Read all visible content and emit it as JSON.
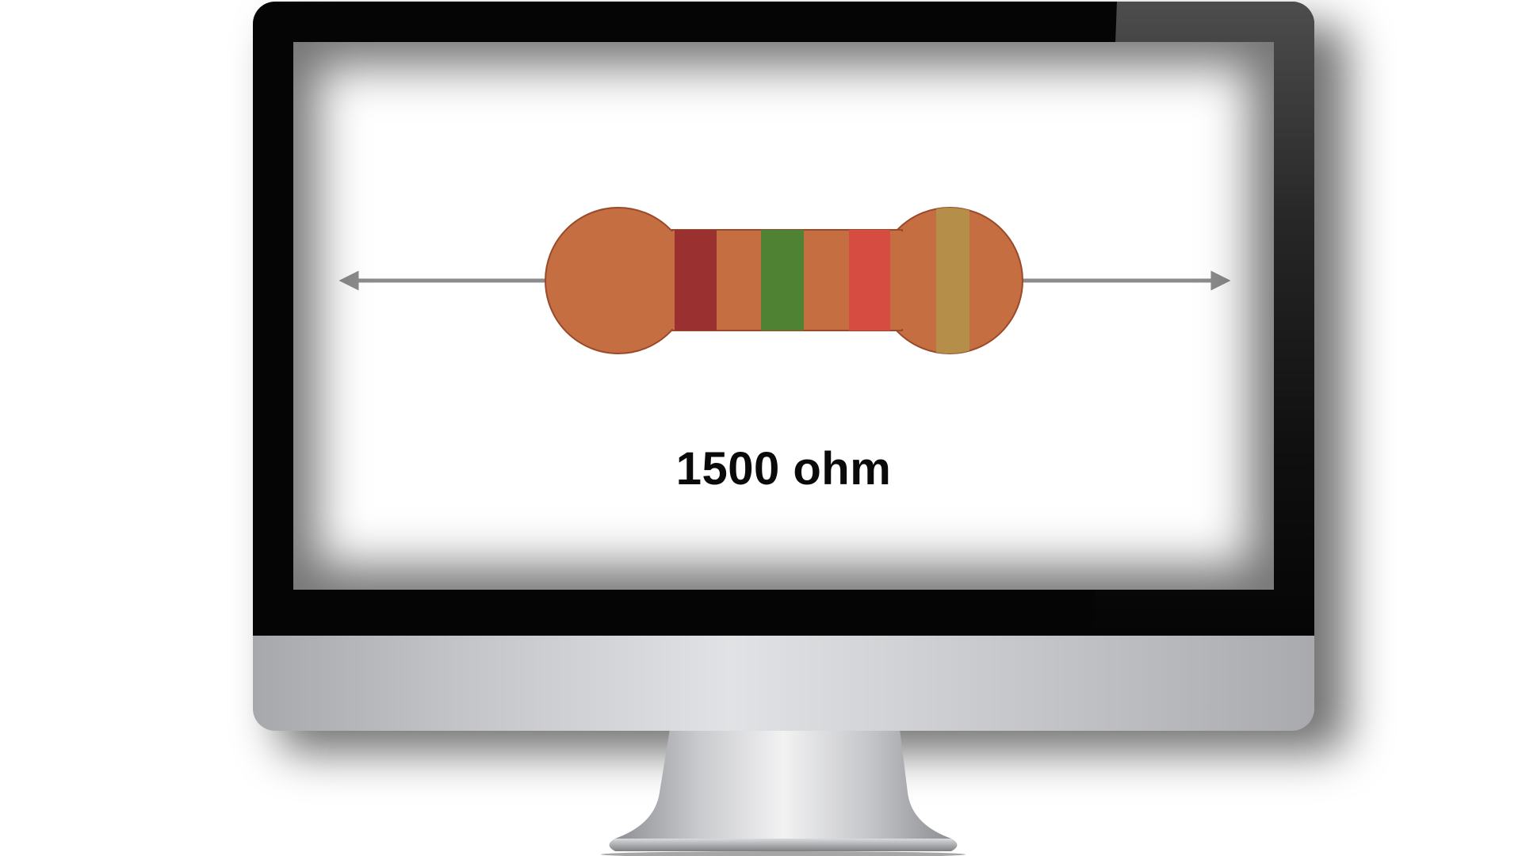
{
  "screen": {
    "value_label": "1500 ohm"
  },
  "resistor": {
    "body_color": "#c46e42",
    "outline_color": "#9a4a2a",
    "lead_color": "#8c8c8c",
    "bands": [
      {
        "name": "band-1",
        "color": "#9a3030"
      },
      {
        "name": "band-2",
        "color": "#4f8232"
      },
      {
        "name": "band-3",
        "color": "#d64c40"
      },
      {
        "name": "band-4",
        "color": "#b58f4a"
      }
    ]
  },
  "monitor": {
    "bezel_color": "#050505",
    "chin_color": "#d2d3d6"
  }
}
